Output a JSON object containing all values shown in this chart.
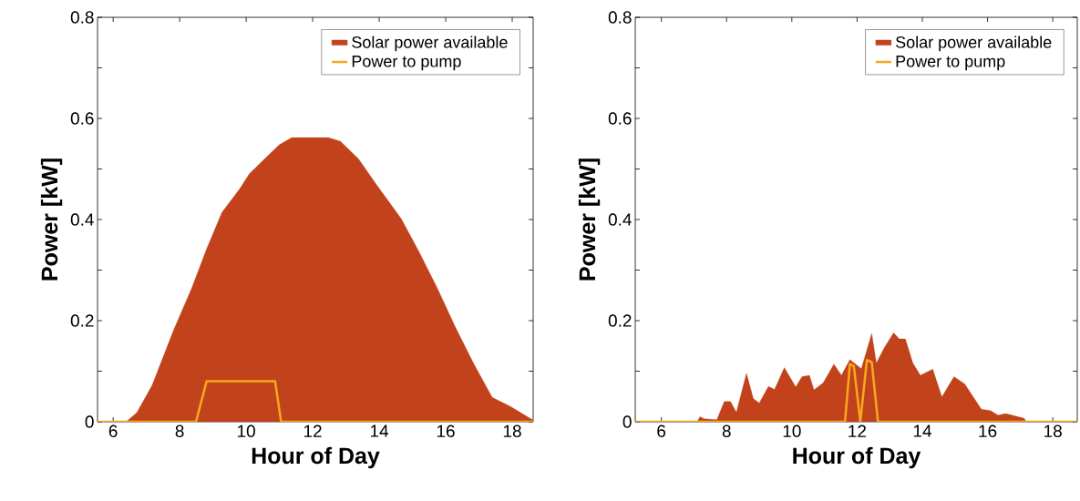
{
  "chart_data": [
    {
      "type": "area",
      "xlabel": "Hour of Day",
      "ylabel": "Power  [kW]",
      "legend": "top right",
      "xlim": [
        5.53,
        18.63
      ],
      "xticks": [
        6,
        8,
        10,
        12,
        14,
        16,
        18
      ],
      "ylim": [
        0,
        0.8
      ],
      "yticks": [
        0,
        {
          "value": 0.1,
          "label": null
        },
        0.2,
        {
          "value": 0.3,
          "label": null
        },
        0.4,
        {
          "value": 0.5,
          "label": null
        },
        0.6,
        {
          "value": 0.7,
          "label": null
        },
        0.8
      ],
      "series": [
        {
          "name": "Solar power available",
          "color": "#c2431b",
          "x": [
            5.53,
            6.39,
            6.71,
            7.17,
            7.81,
            8.36,
            8.81,
            9.27,
            9.82,
            10.09,
            10.55,
            11.0,
            11.37,
            12.47,
            12.83,
            13.38,
            13.93,
            14.66,
            15.2,
            15.75,
            16.3,
            16.85,
            17.4,
            17.95,
            18.63
          ],
          "values": [
            0,
            0,
            0.018,
            0.072,
            0.18,
            0.264,
            0.342,
            0.414,
            0.462,
            0.49,
            0.52,
            0.548,
            0.562,
            0.562,
            0.555,
            0.52,
            0.468,
            0.402,
            0.336,
            0.264,
            0.186,
            0.114,
            0.048,
            0.03,
            0.003
          ]
        },
        {
          "name": "Power to pump",
          "type": "line",
          "color": "#f7a81e",
          "x": [
            5.53,
            8.49,
            8.81,
            10.87,
            11.05,
            18.63
          ],
          "values": [
            0,
            0,
            0.08,
            0.08,
            0,
            0
          ]
        }
      ]
    },
    {
      "type": "area",
      "xlabel": "Hour of Day",
      "ylabel": "Power  [kW]",
      "legend": "top right",
      "xlim": [
        5.2,
        18.75
      ],
      "xticks": [
        6,
        8,
        10,
        12,
        14,
        16,
        18
      ],
      "ylim": [
        0,
        0.8
      ],
      "yticks": [
        0,
        {
          "value": 0.1,
          "label": null
        },
        0.2,
        {
          "value": 0.3,
          "label": null
        },
        0.4,
        {
          "value": 0.5,
          "label": null
        },
        0.6,
        {
          "value": 0.7,
          "label": null
        },
        0.8
      ],
      "series": [
        {
          "name": "Solar power available",
          "color": "#c2431b",
          "x": [
            5.2,
            7.1,
            7.18,
            7.32,
            7.7,
            7.93,
            8.12,
            8.3,
            8.61,
            8.82,
            9.0,
            9.28,
            9.47,
            9.77,
            10.12,
            10.31,
            10.54,
            10.68,
            10.96,
            11.29,
            11.52,
            11.78,
            12.13,
            12.45,
            12.59,
            12.83,
            13.12,
            13.29,
            13.48,
            13.71,
            13.94,
            14.32,
            14.6,
            14.97,
            15.3,
            15.81,
            16.09,
            16.32,
            16.56,
            17.11,
            17.2,
            18.75
          ],
          "values": [
            0,
            0,
            0.01,
            0.006,
            0.004,
            0.04,
            0.04,
            0.019,
            0.096,
            0.046,
            0.037,
            0.07,
            0.064,
            0.107,
            0.069,
            0.089,
            0.092,
            0.063,
            0.077,
            0.114,
            0.092,
            0.123,
            0.105,
            0.175,
            0.116,
            0.146,
            0.176,
            0.164,
            0.164,
            0.116,
            0.092,
            0.104,
            0.049,
            0.089,
            0.075,
            0.025,
            0.022,
            0.013,
            0.016,
            0.007,
            0,
            0
          ]
        },
        {
          "name": "Power to pump",
          "type": "line",
          "color": "#f7a81e",
          "x": [
            5.2,
            11.63,
            11.78,
            11.9,
            12.1,
            12.3,
            12.45,
            12.64,
            18.75
          ],
          "values": [
            0,
            0,
            0.114,
            0.11,
            0,
            0.122,
            0.118,
            0,
            0
          ]
        }
      ]
    }
  ]
}
